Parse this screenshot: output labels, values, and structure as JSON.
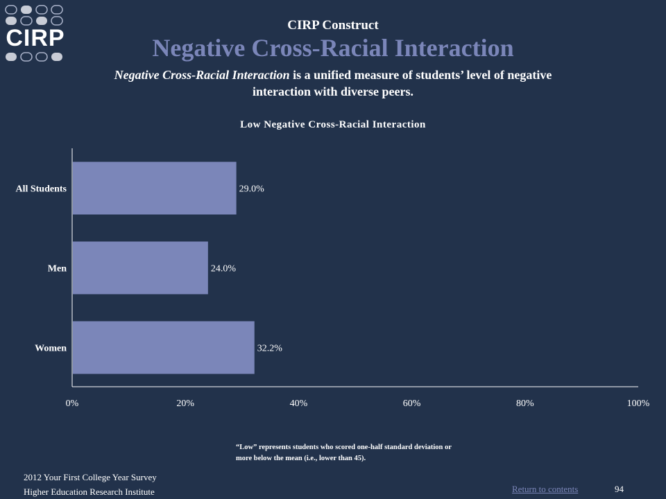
{
  "logo": {
    "text": "CIRP"
  },
  "header": {
    "construct_label": "CIRP Construct",
    "title": "Negative Cross-Racial Interaction",
    "description_emphasis": "Negative Cross-Racial Interaction",
    "description_rest": " is a unified measure of students’ level of negative interaction with diverse peers."
  },
  "chart_data": {
    "type": "bar",
    "orientation": "horizontal",
    "title": "Low Negative Cross-Racial Interaction",
    "categories": [
      "All Students",
      "Men",
      "Women"
    ],
    "values": [
      29.0,
      24.0,
      32.2
    ],
    "value_labels": [
      "29.0%",
      "24.0%",
      "32.2%"
    ],
    "xlim": [
      0,
      100
    ],
    "x_ticks": [
      "0%",
      "20%",
      "40%",
      "60%",
      "80%",
      "100%"
    ],
    "bar_color": "#7b86b9",
    "grid": false,
    "legend": false
  },
  "footnote": "“Low” represents students who scored one-half standard deviation or more below the mean (i.e., lower than 45).",
  "footer": {
    "line1": "2012 Your First College Year Survey",
    "line2": "Higher Education Research Institute",
    "return_link": "Return to contents",
    "page_number": "94"
  }
}
